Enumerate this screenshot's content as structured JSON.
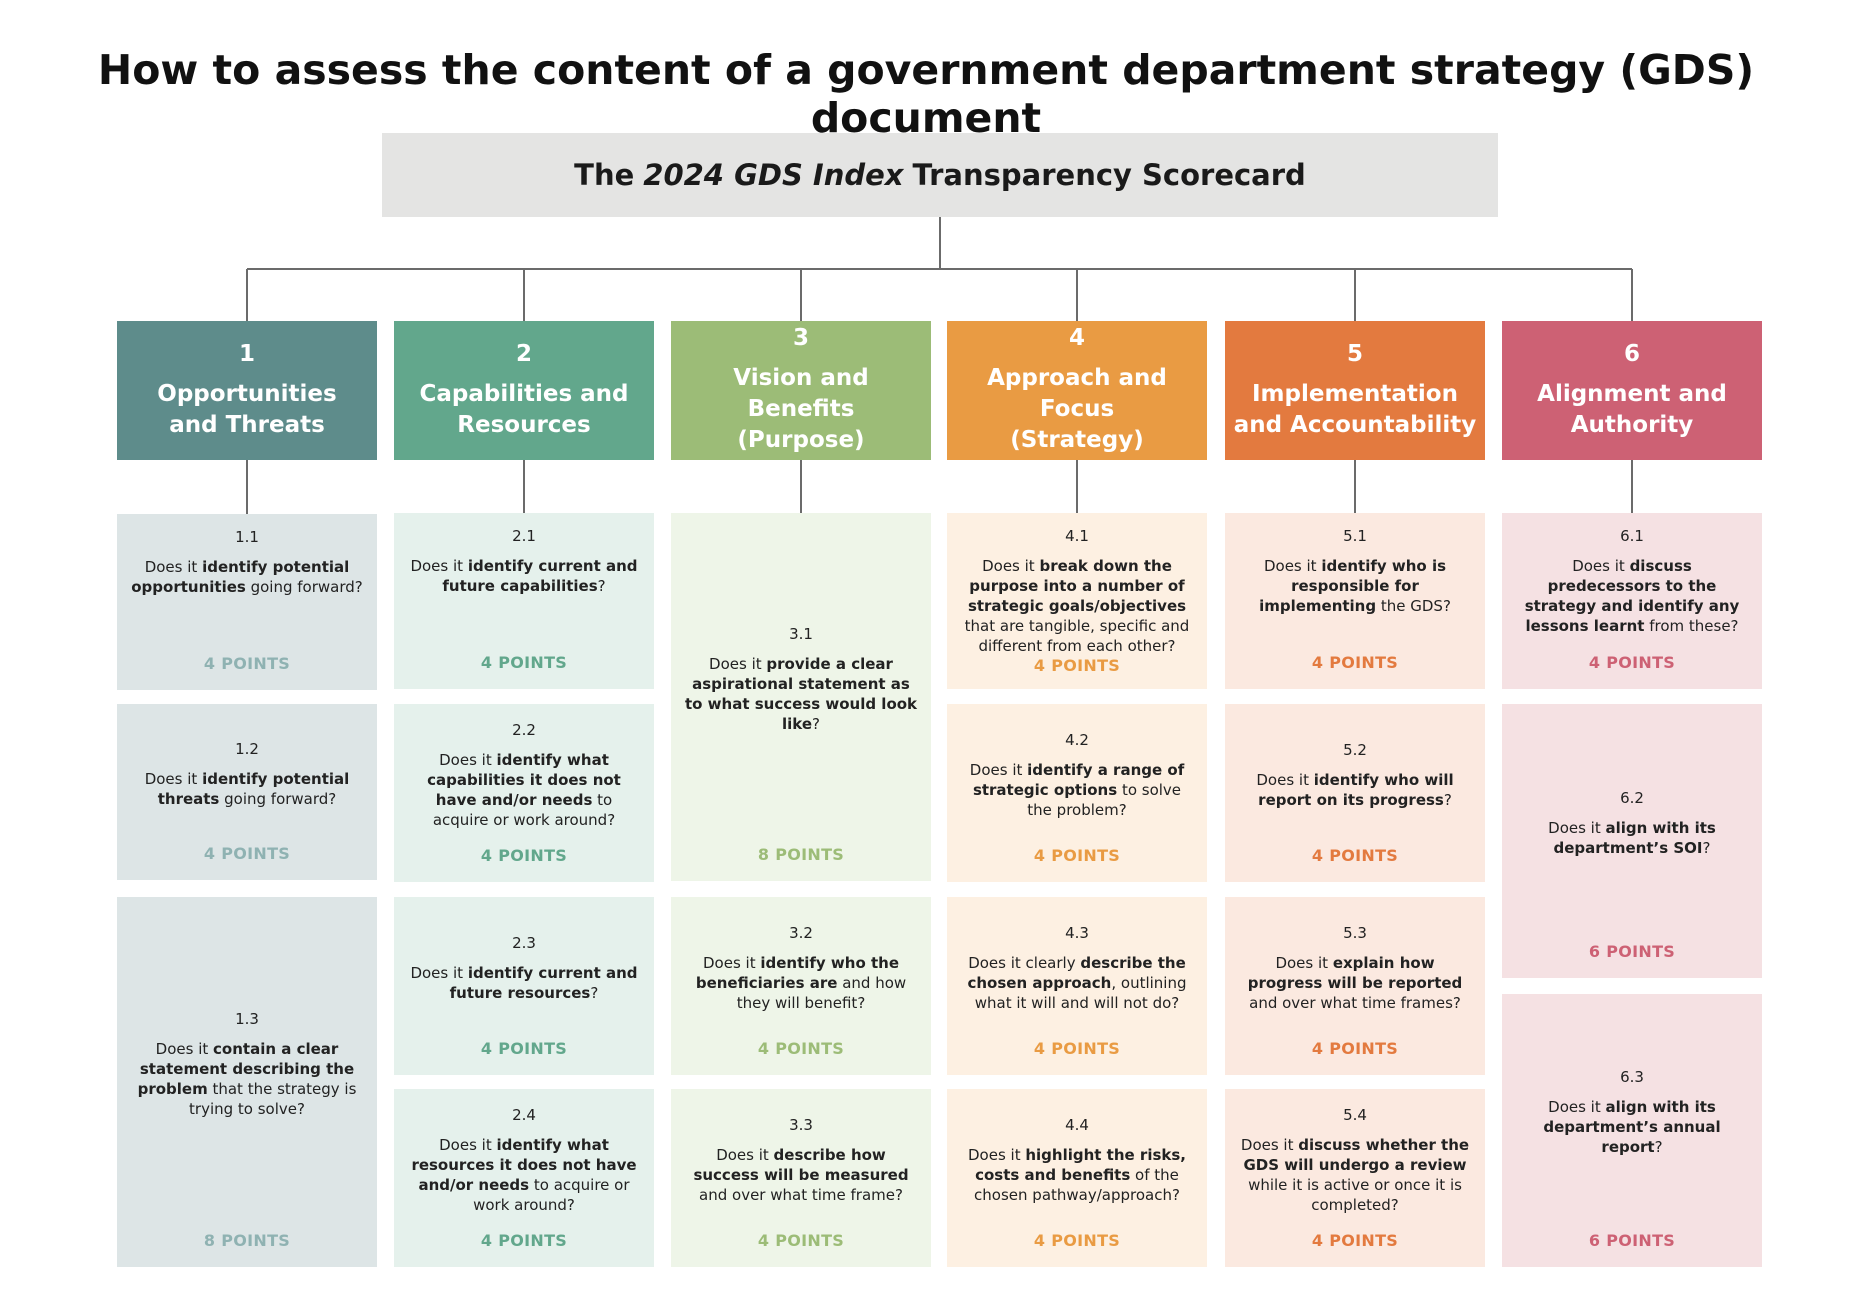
{
  "title": "How to assess the content of a government department strategy (GDS) document",
  "scorecard": {
    "pre": "The",
    "italic": "2024 GDS Index",
    "post": "Transparency Scorecard"
  },
  "columns": [
    {
      "num": "1",
      "name": "Opportunities\nand Threats",
      "header_color": "#5e8c8b",
      "card_color": "#dde5e6",
      "points_color": "#8fb2b2",
      "cards": [
        {
          "num": "1.1",
          "question": [
            [
              "Does it ",
              false
            ],
            [
              "identify potential opportunities",
              true
            ],
            [
              " going forward?",
              false
            ]
          ],
          "points": "4 POINTS"
        },
        {
          "num": "1.2",
          "question": [
            [
              "Does it ",
              false
            ],
            [
              "identify potential threats",
              true
            ],
            [
              " going forward?",
              false
            ]
          ],
          "points": "4 POINTS"
        },
        {
          "num": "1.3",
          "question": [
            [
              "Does it ",
              false
            ],
            [
              "contain a clear statement describing the problem",
              true
            ],
            [
              " that the strategy is trying to solve?",
              false
            ]
          ],
          "points": "8 POINTS"
        }
      ]
    },
    {
      "num": "2",
      "name": "Capabilities and\nResources",
      "header_color": "#62a78c",
      "card_color": "#e5f1ec",
      "points_color": "#62a78c",
      "cards": [
        {
          "num": "2.1",
          "question": [
            [
              "Does it ",
              false
            ],
            [
              "identify current and future capabilities",
              true
            ],
            [
              "?",
              false
            ]
          ],
          "points": "4 POINTS"
        },
        {
          "num": "2.2",
          "question": [
            [
              "Does it ",
              false
            ],
            [
              "identify what capabilities it does not have and/or needs",
              true
            ],
            [
              " to acquire or work around?",
              false
            ]
          ],
          "points": "4 POINTS"
        },
        {
          "num": "2.3",
          "question": [
            [
              "Does it ",
              false
            ],
            [
              "identify current and future resources",
              true
            ],
            [
              "?",
              false
            ]
          ],
          "points": "4 POINTS"
        },
        {
          "num": "2.4",
          "question": [
            [
              "Does it ",
              false
            ],
            [
              "identify what resources it does not have and/or needs",
              true
            ],
            [
              " to acquire or work around?",
              false
            ]
          ],
          "points": "4 POINTS"
        }
      ]
    },
    {
      "num": "3",
      "name": "Vision and Benefits\n(Purpose)",
      "header_color": "#9cbc77",
      "card_color": "#eef5e8",
      "points_color": "#9cbc77",
      "cards": [
        {
          "num": "3.1",
          "question": [
            [
              "Does it ",
              false
            ],
            [
              "provide a clear aspirational statement as to what success would look like",
              true
            ],
            [
              "?",
              false
            ]
          ],
          "points": "8 POINTS"
        },
        {
          "num": "3.2",
          "question": [
            [
              "Does it ",
              false
            ],
            [
              "identify who the beneficiaries are",
              true
            ],
            [
              " and how they will benefit?",
              false
            ]
          ],
          "points": "4 POINTS"
        },
        {
          "num": "3.3",
          "question": [
            [
              "Does it ",
              false
            ],
            [
              "describe how success will be measured",
              true
            ],
            [
              " and over what time frame?",
              false
            ]
          ],
          "points": "4 POINTS"
        }
      ]
    },
    {
      "num": "4",
      "name": "Approach and Focus\n(Strategy)",
      "header_color": "#e99b43",
      "card_color": "#fdf0e2",
      "points_color": "#e99b43",
      "cards": [
        {
          "num": "4.1",
          "question": [
            [
              "Does it ",
              false
            ],
            [
              "break down the purpose into a number of strategic goals/objectives",
              true
            ],
            [
              " that are tangible, specific and different from each other?",
              false
            ]
          ],
          "points": "4 POINTS"
        },
        {
          "num": "4.2",
          "question": [
            [
              "Does it ",
              false
            ],
            [
              "identify a range of strategic options",
              true
            ],
            [
              " to solve the problem?",
              false
            ]
          ],
          "points": "4 POINTS"
        },
        {
          "num": "4.3",
          "question": [
            [
              "Does it clearly ",
              false
            ],
            [
              "describe the chosen approach",
              true
            ],
            [
              ", outlining what it will and will not do?",
              false
            ]
          ],
          "points": "4 POINTS"
        },
        {
          "num": "4.4",
          "question": [
            [
              "Does it ",
              false
            ],
            [
              "highlight the risks, costs and benefits",
              true
            ],
            [
              " of the chosen pathway/approach?",
              false
            ]
          ],
          "points": "4 POINTS"
        }
      ]
    },
    {
      "num": "5",
      "name": "Implementation\nand Accountability",
      "header_color": "#e37a3f",
      "card_color": "#fbe9e0",
      "points_color": "#e37a3f",
      "cards": [
        {
          "num": "5.1",
          "question": [
            [
              "Does it ",
              false
            ],
            [
              "identify who is responsible for implementing",
              true
            ],
            [
              " the GDS?",
              false
            ]
          ],
          "points": "4 POINTS"
        },
        {
          "num": "5.2",
          "question": [
            [
              "Does it ",
              false
            ],
            [
              "identify who will report on its progress",
              true
            ],
            [
              "?",
              false
            ]
          ],
          "points": "4 POINTS"
        },
        {
          "num": "5.3",
          "question": [
            [
              "Does it ",
              false
            ],
            [
              "explain how progress will be reported",
              true
            ],
            [
              " and over what time frames?",
              false
            ]
          ],
          "points": "4 POINTS"
        },
        {
          "num": "5.4",
          "question": [
            [
              "Does it ",
              false
            ],
            [
              "discuss whether the GDS will undergo a review",
              true
            ],
            [
              " while it is active or once it is completed?",
              false
            ]
          ],
          "points": "4 POINTS"
        }
      ]
    },
    {
      "num": "6",
      "name": "Alignment and\nAuthority",
      "header_color": "#cd6174",
      "card_color": "#f5e1e3",
      "points_color": "#cd6174",
      "cards": [
        {
          "num": "6.1",
          "question": [
            [
              "Does it ",
              false
            ],
            [
              "discuss predecessors to the strategy and identify any lessons learnt",
              true
            ],
            [
              " from these?",
              false
            ]
          ],
          "points": "4 POINTS"
        },
        {
          "num": "6.2",
          "question": [
            [
              "Does it ",
              false
            ],
            [
              "align with its department’s SOI",
              true
            ],
            [
              "?",
              false
            ]
          ],
          "points": "6 POINTS"
        },
        {
          "num": "6.3",
          "question": [
            [
              "Does it ",
              false
            ],
            [
              "align with its department’s annual report",
              true
            ],
            [
              "?",
              false
            ]
          ],
          "points": "6 POINTS"
        }
      ]
    }
  ]
}
